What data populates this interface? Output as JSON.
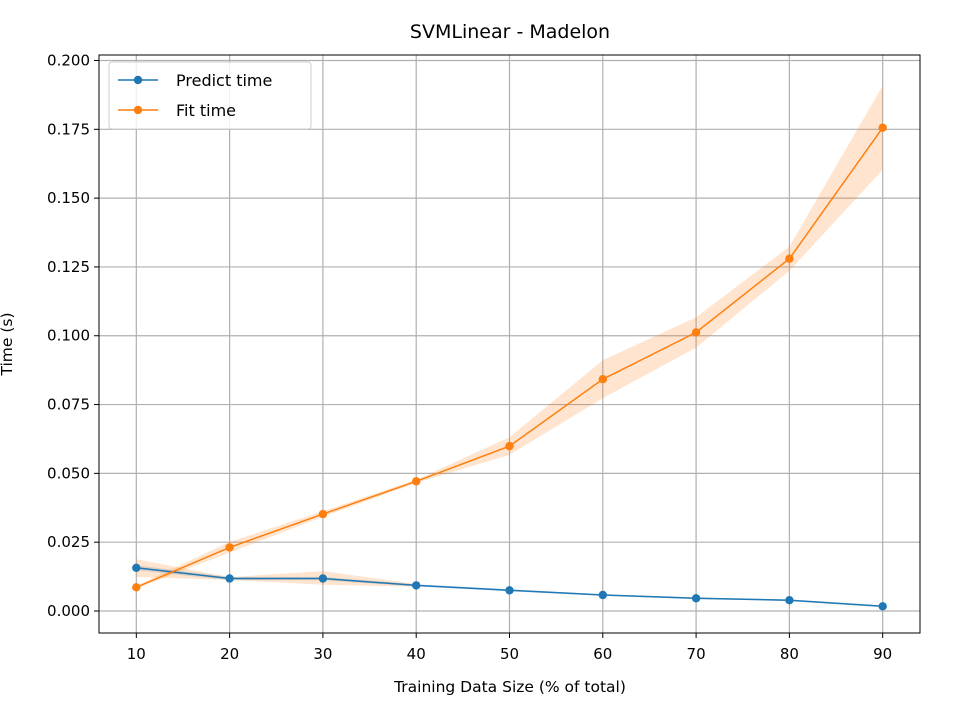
{
  "chart_data": {
    "type": "line",
    "title": "SVMLinear - Madelon",
    "xlabel": "Training Data Size (% of total)",
    "ylabel": "Time (s)",
    "x": [
      10,
      20,
      30,
      40,
      50,
      60,
      70,
      80,
      90
    ],
    "xlim": [
      6,
      94
    ],
    "ylim": [
      -0.008,
      0.202
    ],
    "xticks": [
      10,
      20,
      30,
      40,
      50,
      60,
      70,
      80,
      90
    ],
    "xtick_labels": [
      "10",
      "20",
      "30",
      "40",
      "50",
      "60",
      "70",
      "80",
      "90"
    ],
    "yticks": [
      0.0,
      0.025,
      0.05,
      0.075,
      0.1,
      0.125,
      0.15,
      0.175,
      0.2
    ],
    "ytick_labels": [
      "0.000",
      "0.025",
      "0.050",
      "0.075",
      "0.100",
      "0.125",
      "0.150",
      "0.175",
      "0.200"
    ],
    "grid": true,
    "legend_position": "top-left",
    "series": [
      {
        "name": "Predict time",
        "color": "#1f77b4",
        "values": [
          0.0157,
          0.0118,
          0.0118,
          0.0093,
          0.0075,
          0.0058,
          0.0046,
          0.0039,
          0.0017
        ],
        "band_lower": [
          0.0148,
          0.0112,
          0.0112,
          0.0089,
          0.0071,
          0.0055,
          0.0043,
          0.0036,
          0.0014
        ],
        "band_upper": [
          0.0166,
          0.0124,
          0.0124,
          0.0097,
          0.0079,
          0.0061,
          0.0049,
          0.0042,
          0.002
        ]
      },
      {
        "name": "Fit time",
        "color": "#ff7f0e",
        "values": [
          0.0086,
          0.0231,
          0.0352,
          0.0471,
          0.0599,
          0.0842,
          0.1012,
          0.128,
          0.1756
        ],
        "band_lower": [
          0.0082,
          0.0212,
          0.0342,
          0.0465,
          0.0567,
          0.0773,
          0.0957,
          0.1236,
          0.1603
        ],
        "band_upper": [
          0.0091,
          0.0251,
          0.0362,
          0.0477,
          0.0631,
          0.0911,
          0.1067,
          0.1324,
          0.1909
        ]
      }
    ],
    "extra_bands": [
      {
        "color": "#ff7f0e",
        "x": [
          10,
          20,
          30,
          40
        ],
        "lower": [
          0.0123,
          0.0113,
          0.0095,
          0.0088
        ],
        "upper": [
          0.0188,
          0.0123,
          0.0145,
          0.0098
        ]
      }
    ],
    "band_colors": {
      "predict_time_band": "#fbe0c8",
      "fit_time_band": "#c9dced"
    }
  }
}
